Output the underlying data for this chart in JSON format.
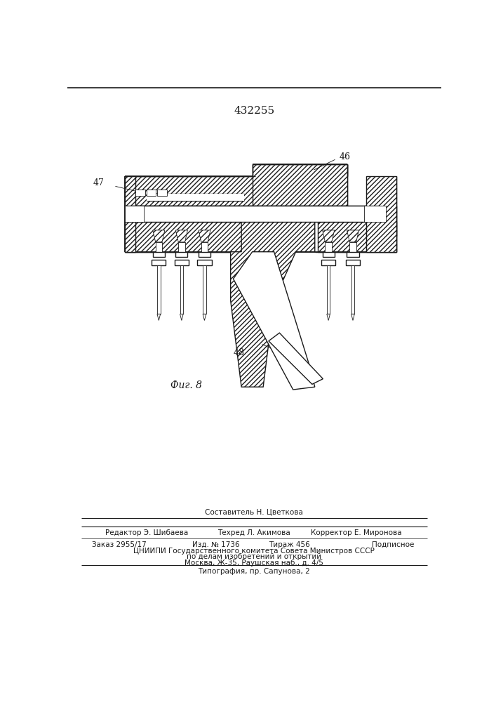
{
  "patent_number": "432255",
  "fig_label": "Фиг. 8",
  "label_46": "46",
  "label_47": "47",
  "label_48": "48",
  "top_line_text": "Составитель Н. Цветкова",
  "row1_left": "Редактор Э. Шибаева",
  "row1_mid": "Техред Л. Акимова",
  "row1_right": "Корректор Е. Миронова",
  "row2_left": "Заказ 2955/17",
  "row2_mid1": "Изд. № 1736",
  "row2_mid2": "Тираж 456",
  "row2_right": "Подписное",
  "row3": "ЦНИИПИ Государственного комитета Совета Министров СССР",
  "row4": "по делам изобретений и открытий",
  "row5": "Москва, Ж-35, Раушская наб., д. 4/5",
  "row6": "Типография, пр. Сапунова, 2",
  "bg_color": "#ffffff",
  "line_color": "#1a1a1a"
}
